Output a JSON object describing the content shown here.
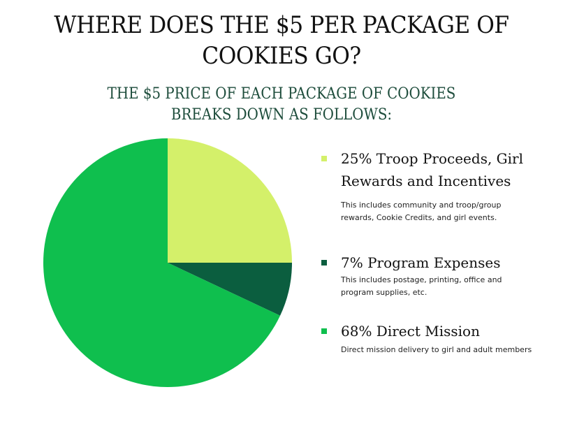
{
  "chart_data": {
    "type": "pie",
    "title": "WHERE DOES THE $5  PER PACKAGE OF\nCOOKIES GO?",
    "subtitle": "THE $5 PRICE OF EACH PACKAGE OF COOKIES\nBREAKS DOWN AS FOLLOWS:",
    "slices": [
      {
        "label": "25% Troop Proceeds, Girl Rewards and Incentives",
        "value": 25,
        "color": "#d4f06a",
        "description": "This includes community and troop/group rewards, Cookie Credits, and girl events."
      },
      {
        "label": "7% Program Expenses",
        "value": 7,
        "color": "#0b5e3f",
        "description": "This includes postage, printing, office and program supplies, etc."
      },
      {
        "label": "68% Direct Mission",
        "value": 68,
        "color": "#0fbf4e",
        "description": "Direct mission delivery to girl and adult members"
      }
    ],
    "legend_position": "right"
  }
}
